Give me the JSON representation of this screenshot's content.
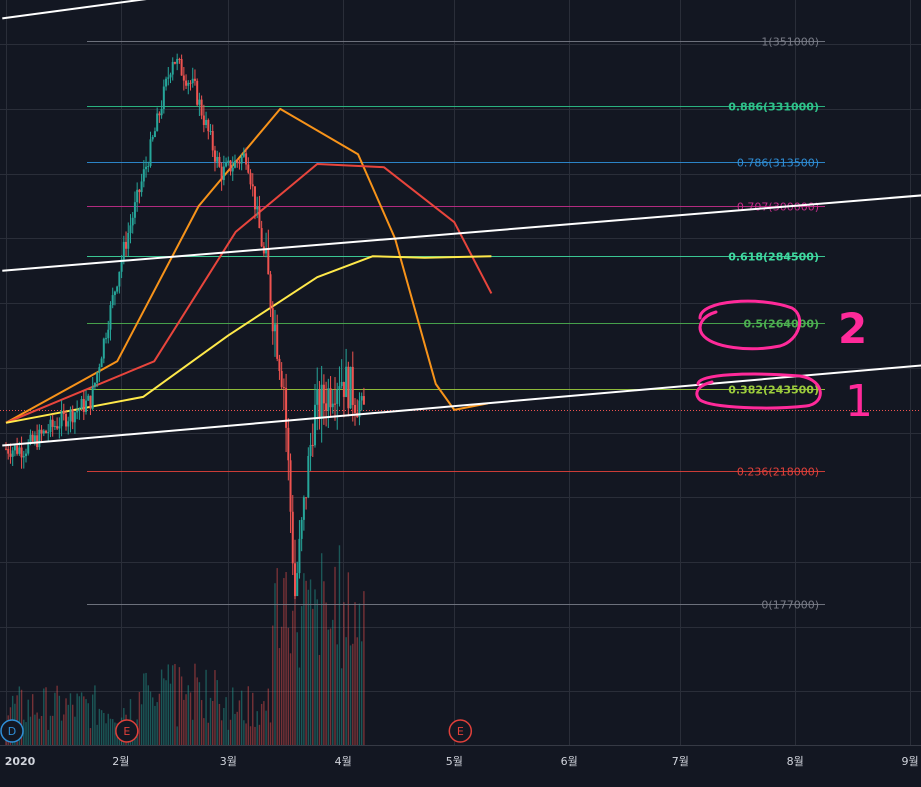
{
  "chart_data": {
    "type": "candlestick",
    "title": "",
    "x_axis": {
      "ticks": [
        "2020",
        "2월",
        "3월",
        "4월",
        "5월",
        "6월",
        "7월",
        "8월",
        "9월"
      ]
    },
    "fib_levels": [
      {
        "ratio": 1,
        "price": 351000,
        "label": "1(351000)",
        "color": "#787b86",
        "bold": false
      },
      {
        "ratio": 0.886,
        "price": 331000,
        "label": "0.886(331000)",
        "color": "#2ec28a",
        "bold": true
      },
      {
        "ratio": 0.786,
        "price": 313500,
        "label": "0.786(313500)",
        "color": "#2f8fd8",
        "bold": false
      },
      {
        "ratio": 0.707,
        "price": 300000,
        "label": "0.707(300000)",
        "color": "#c42d8a",
        "bold": false
      },
      {
        "ratio": 0.618,
        "price": 284500,
        "label": "0.618(284500)",
        "color": "#3fd9a0",
        "bold": true
      },
      {
        "ratio": 0.5,
        "price": 264000,
        "label": "0.5(264000)",
        "color": "#4caf50",
        "bold": true
      },
      {
        "ratio": 0.382,
        "price": 243500,
        "label": "0.382(243500)",
        "color": "#9ccc3c",
        "bold": true
      },
      {
        "ratio": 0.236,
        "price": 218000,
        "label": "0.236(218000)",
        "color": "#e0403a",
        "bold": false
      },
      {
        "ratio": 0,
        "price": 177000,
        "label": "0(177000)",
        "color": "#787b86",
        "bold": false
      }
    ],
    "last_price": 237000,
    "price_series_approx": [
      {
        "date": "2020-01-06",
        "close": 225000
      },
      {
        "date": "2020-01-15",
        "close": 233000
      },
      {
        "date": "2020-01-24",
        "close": 240000
      },
      {
        "date": "2020-02-01",
        "close": 283000
      },
      {
        "date": "2020-02-10",
        "close": 322000
      },
      {
        "date": "2020-02-15",
        "close": 346000
      },
      {
        "date": "2020-02-21",
        "close": 336000
      },
      {
        "date": "2020-02-28",
        "close": 310000
      },
      {
        "date": "2020-03-06",
        "close": 316000
      },
      {
        "date": "2020-03-12",
        "close": 275000
      },
      {
        "date": "2020-03-16",
        "close": 245000
      },
      {
        "date": "2020-03-19",
        "close": 180000
      },
      {
        "date": "2020-03-24",
        "close": 235000
      },
      {
        "date": "2020-03-31",
        "close": 248000
      },
      {
        "date": "2020-04-07",
        "close": 237000
      }
    ],
    "moving_averages": [
      {
        "color": "#f7931a",
        "points": [
          [
            0,
            233000
          ],
          [
            30,
            252000
          ],
          [
            52,
            300000
          ],
          [
            74,
            330000
          ],
          [
            95,
            316000
          ],
          [
            105,
            290000
          ],
          [
            116,
            245000
          ],
          [
            121,
            237000
          ],
          [
            130,
            239000
          ]
        ]
      },
      {
        "color": "#e8453c",
        "points": [
          [
            0,
            233000
          ],
          [
            40,
            252000
          ],
          [
            62,
            292000
          ],
          [
            84,
            313000
          ],
          [
            102,
            312000
          ],
          [
            121,
            295000
          ],
          [
            131,
            273000
          ]
        ]
      },
      {
        "color": "#ffe94a",
        "points": [
          [
            0,
            233000
          ],
          [
            37,
            241000
          ],
          [
            60,
            260000
          ],
          [
            84,
            278000
          ],
          [
            99,
            284500
          ],
          [
            113,
            284000
          ],
          [
            131,
            284500
          ]
        ]
      }
    ],
    "trendlines": [
      {
        "color": "#ffffff",
        "from": [
          -1,
          358000
        ],
        "to": [
          240,
          395000
        ]
      },
      {
        "color": "#ffffff",
        "from": [
          -1,
          280000
        ],
        "to": [
          340,
          312000
        ]
      },
      {
        "color": "#ffffff",
        "from": [
          -1,
          226000
        ],
        "to": [
          340,
          260000
        ]
      }
    ],
    "events": [
      {
        "symbol": "D",
        "date": "2020-01-01",
        "color": "#2f8fd8"
      },
      {
        "symbol": "E",
        "date": "2020-02-01",
        "color": "#e0403a"
      },
      {
        "symbol": "E",
        "date": "2020-05-01",
        "color": "#e0403a"
      }
    ],
    "annotations": [
      {
        "text": "2",
        "color": "#ff2a9a"
      },
      {
        "text": "1",
        "color": "#ff2a9a"
      }
    ],
    "colors": {
      "background": "#131722",
      "grid": "#2a2e39",
      "up": "#26a69a",
      "down": "#ef5350",
      "highlight": "#ff2a9a",
      "axis_text": "#d1d4dc"
    }
  }
}
